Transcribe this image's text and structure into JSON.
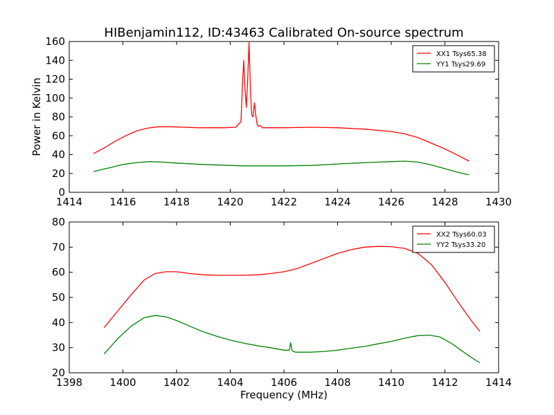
{
  "figure": {
    "title": "HIBenjamin112, ID:43463 Calibrated On-source spectrum",
    "ylabel": "Power in Kelvin",
    "xlabel": "Frequency (MHz)"
  },
  "chart_data": [
    {
      "type": "line",
      "title": "HIBenjamin112, ID:43463 Calibrated On-source spectrum",
      "xlabel": "",
      "ylabel": "Power in Kelvin",
      "xlim": [
        1414,
        1430
      ],
      "ylim": [
        0,
        160
      ],
      "xticks": [
        1414,
        1416,
        1418,
        1420,
        1422,
        1424,
        1426,
        1428,
        1430
      ],
      "yticks": [
        0,
        20,
        40,
        60,
        80,
        100,
        120,
        140,
        160
      ],
      "grid": false,
      "legend_position": "top-right",
      "series": [
        {
          "name": "XX1 Tsys65.38",
          "color": "#ff0000",
          "x": [
            1414.9,
            1415.3,
            1415.7,
            1416.1,
            1416.5,
            1416.9,
            1417.3,
            1417.8,
            1418.3,
            1418.8,
            1419.3,
            1419.8,
            1420.2,
            1420.4,
            1420.45,
            1420.5,
            1420.55,
            1420.6,
            1420.65,
            1420.7,
            1420.75,
            1420.8,
            1420.85,
            1420.9,
            1420.95,
            1421.0,
            1421.05,
            1421.1,
            1421.2,
            1421.4,
            1422.0,
            1423.0,
            1424.0,
            1425.0,
            1426.0,
            1426.5,
            1427.0,
            1427.5,
            1428.0,
            1428.5,
            1428.9
          ],
          "y": [
            41,
            47,
            54,
            60,
            65,
            68,
            69.5,
            69.5,
            69,
            68.5,
            68.5,
            68.5,
            69,
            75,
            110,
            140,
            110,
            90,
            120,
            159,
            110,
            82,
            80,
            95,
            82,
            72,
            70,
            71,
            68.5,
            68.5,
            68.5,
            69,
            68.5,
            67,
            64.5,
            62,
            58,
            52,
            46,
            39,
            33
          ]
        },
        {
          "name": "YY1 Tsys29.69",
          "color": "#008000",
          "x": [
            1414.9,
            1415.5,
            1416.0,
            1416.5,
            1417.0,
            1417.5,
            1418.0,
            1419.0,
            1420.0,
            1420.5,
            1421.0,
            1422.0,
            1423.0,
            1424.0,
            1425.0,
            1426.0,
            1426.5,
            1427.0,
            1427.5,
            1428.0,
            1428.5,
            1428.9
          ],
          "y": [
            22,
            26,
            29.5,
            31.5,
            32.5,
            32,
            31,
            29.5,
            28.5,
            28,
            28,
            28,
            28.5,
            30,
            31.5,
            32.5,
            33,
            32,
            29,
            25,
            21,
            18.5
          ]
        }
      ]
    },
    {
      "type": "line",
      "title": "",
      "xlabel": "Frequency (MHz)",
      "ylabel": "",
      "xlim": [
        1398,
        1414
      ],
      "ylim": [
        20,
        80
      ],
      "xticks": [
        1398,
        1400,
        1402,
        1404,
        1406,
        1408,
        1410,
        1412,
        1414
      ],
      "yticks": [
        20,
        30,
        40,
        50,
        60,
        70,
        80
      ],
      "grid": false,
      "legend_position": "top-right",
      "series": [
        {
          "name": "XX2 Tsys60.03",
          "color": "#ff0000",
          "x": [
            1399.3,
            1399.8,
            1400.3,
            1400.8,
            1401.2,
            1401.6,
            1402.0,
            1402.5,
            1403.0,
            1403.5,
            1404.0,
            1404.5,
            1405.0,
            1405.5,
            1406.0,
            1406.5,
            1407.0,
            1407.5,
            1408.0,
            1408.5,
            1409.0,
            1409.5,
            1410.0,
            1410.5,
            1411.0,
            1411.5,
            1412.0,
            1412.5,
            1413.0,
            1413.3
          ],
          "y": [
            38,
            44.5,
            51,
            57,
            59.5,
            60.2,
            60.2,
            59.5,
            59,
            58.8,
            58.8,
            58.8,
            59,
            59.5,
            60.2,
            61.5,
            63.5,
            65.5,
            67.5,
            69,
            70,
            70.3,
            70.2,
            69.5,
            67.5,
            63,
            56,
            48,
            40.5,
            36.5
          ]
        },
        {
          "name": "YY2 Tsys33.20",
          "color": "#008000",
          "x": [
            1399.3,
            1399.8,
            1400.3,
            1400.8,
            1401.2,
            1401.6,
            1402.0,
            1402.5,
            1403.0,
            1403.5,
            1404.0,
            1404.5,
            1405.0,
            1405.5,
            1406.0,
            1406.2,
            1406.25,
            1406.3,
            1406.35,
            1406.45,
            1407.0,
            1407.5,
            1408.0,
            1408.5,
            1409.0,
            1409.5,
            1410.0,
            1410.5,
            1411.0,
            1411.4,
            1411.8,
            1412.2,
            1412.6,
            1413.0,
            1413.3
          ],
          "y": [
            27.5,
            33.5,
            38.5,
            42,
            42.8,
            42.3,
            40.8,
            38.5,
            36.3,
            34.5,
            33,
            31.8,
            30.8,
            30,
            29,
            29,
            32,
            29,
            28.5,
            28.2,
            28.2,
            28.5,
            29,
            29.8,
            30.5,
            31.5,
            32.5,
            33.8,
            34.8,
            35,
            34.3,
            32,
            29,
            26,
            24
          ]
        }
      ]
    }
  ]
}
